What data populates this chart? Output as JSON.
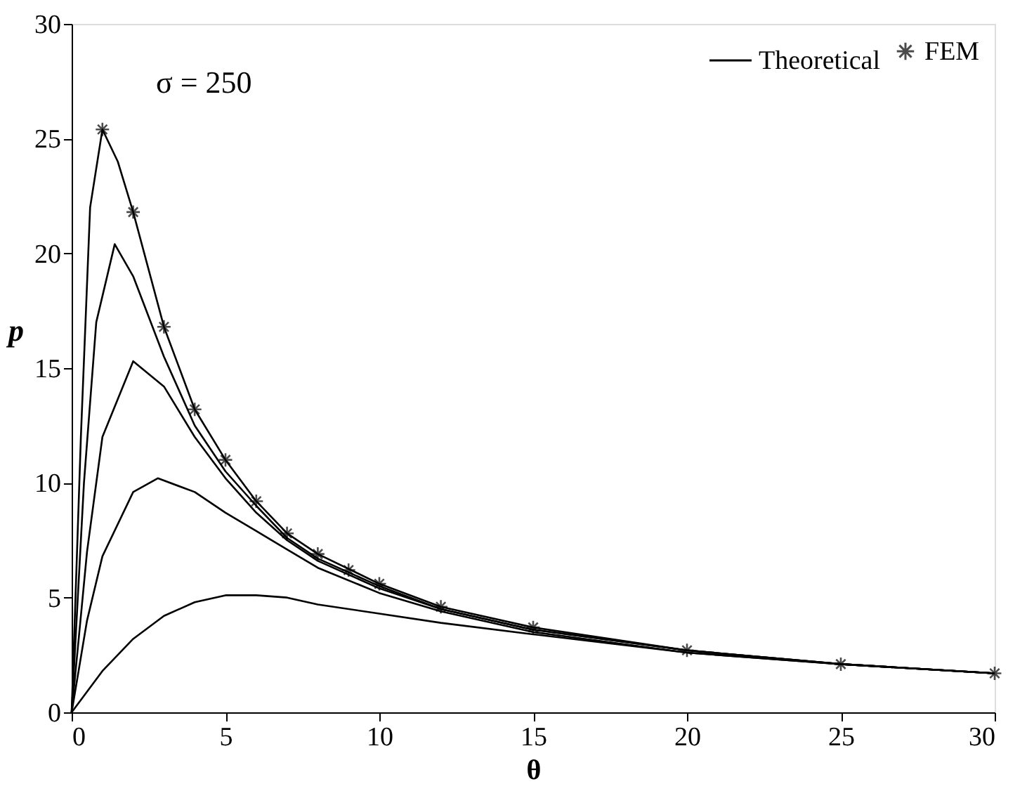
{
  "chart_data": {
    "type": "line",
    "xlabel": "θ",
    "ylabel": "p",
    "xlim": [
      0,
      30
    ],
    "ylim": [
      0,
      30
    ],
    "xticks": [
      0,
      5,
      10,
      15,
      20,
      25,
      30
    ],
    "yticks": [
      0,
      5,
      10,
      15,
      20,
      25,
      30
    ],
    "grid": false,
    "legend": "top right",
    "line_style": "solid",
    "annotations": [
      "σ = 250"
    ],
    "series": [
      {
        "name": "Theoretical",
        "color": "#000000",
        "x": [
          0,
          0.3,
          0.6,
          1,
          1.5,
          2,
          3,
          4,
          5,
          6,
          7,
          8,
          10,
          12,
          15,
          20,
          25,
          30
        ],
        "values": [
          0,
          12,
          22,
          25.4,
          24,
          21.8,
          16.8,
          13.2,
          11,
          9.2,
          7.8,
          6.9,
          5.6,
          4.6,
          3.7,
          2.7,
          2.1,
          1.7
        ]
      },
      {
        "color": "#000000",
        "x": [
          0,
          0.4,
          0.8,
          1.4,
          2,
          3,
          4,
          5,
          6,
          7,
          8,
          10,
          12,
          15,
          20,
          25,
          30
        ],
        "values": [
          0,
          10,
          17,
          20.4,
          19,
          15.5,
          12.5,
          10.5,
          9,
          7.6,
          6.7,
          5.5,
          4.5,
          3.6,
          2.7,
          2.1,
          1.7
        ]
      },
      {
        "color": "#000000",
        "x": [
          0,
          0.5,
          1,
          2,
          3,
          4,
          5,
          6,
          7,
          8,
          10,
          12,
          15,
          20,
          25,
          30
        ],
        "values": [
          0,
          7,
          12,
          15.3,
          14.2,
          12,
          10.2,
          8.7,
          7.5,
          6.6,
          5.4,
          4.5,
          3.6,
          2.7,
          2.1,
          1.7
        ]
      },
      {
        "color": "#000000",
        "x": [
          0,
          0.5,
          1,
          2,
          2.8,
          4,
          5,
          6,
          7,
          8,
          10,
          12,
          15,
          20,
          25,
          30
        ],
        "values": [
          0,
          4,
          6.8,
          9.6,
          10.2,
          9.6,
          8.7,
          7.9,
          7.1,
          6.3,
          5.2,
          4.4,
          3.5,
          2.6,
          2.1,
          1.7
        ]
      },
      {
        "color": "#000000",
        "x": [
          0,
          1,
          2,
          3,
          4,
          5,
          6,
          7,
          8,
          10,
          12,
          15,
          20,
          25,
          30
        ],
        "values": [
          0,
          1.8,
          3.2,
          4.2,
          4.8,
          5.1,
          5.1,
          5.0,
          4.7,
          4.3,
          3.9,
          3.4,
          2.6,
          2.1,
          1.7
        ]
      },
      {
        "name": "FEM",
        "type": "scatter",
        "marker": "cross",
        "color": "#000000",
        "x": [
          1,
          2,
          3,
          4,
          5,
          6,
          7,
          8,
          9,
          10,
          12,
          15,
          20,
          25,
          30
        ],
        "values": [
          25.4,
          21.8,
          16.8,
          13.2,
          11.0,
          9.2,
          7.8,
          6.9,
          6.2,
          5.6,
          4.6,
          3.7,
          2.7,
          2.1,
          1.7
        ]
      }
    ]
  }
}
